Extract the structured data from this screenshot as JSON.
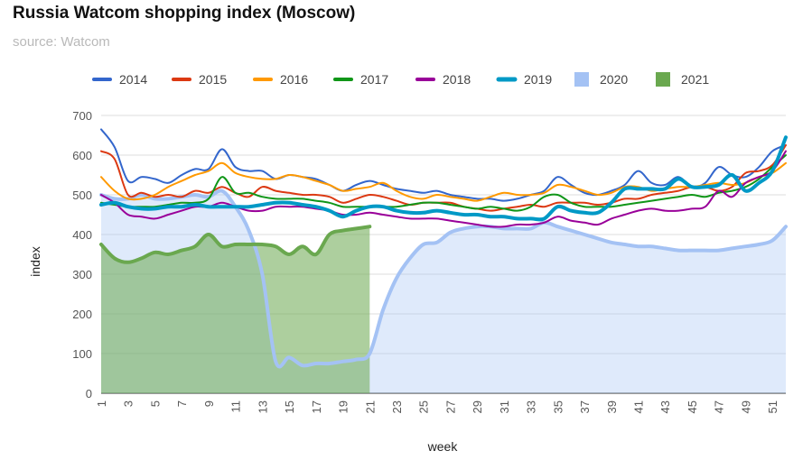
{
  "title": "Russia Watcom shopping index (Moscow)",
  "subtitle": "source: Watcom",
  "chart_data": {
    "type": "line",
    "title": "Russia Watcom shopping index (Moscow)",
    "subtitle": "source: Watcom",
    "xlabel": "week",
    "ylabel": "index",
    "xlim": [
      1,
      52
    ],
    "ylim": [
      0,
      700
    ],
    "yticks": [
      0,
      100,
      200,
      300,
      400,
      500,
      600,
      700
    ],
    "xticks": [
      1,
      3,
      5,
      7,
      9,
      11,
      13,
      15,
      17,
      19,
      21,
      23,
      25,
      27,
      29,
      31,
      33,
      35,
      37,
      39,
      41,
      43,
      45,
      47,
      49,
      51
    ],
    "grid": true,
    "legend_position": "top",
    "series": [
      {
        "name": "2014",
        "style": "line",
        "color": "#3366cc",
        "values": [
          665,
          620,
          535,
          545,
          540,
          530,
          550,
          565,
          565,
          615,
          570,
          560,
          560,
          540,
          550,
          545,
          540,
          525,
          510,
          525,
          535,
          525,
          515,
          510,
          505,
          510,
          500,
          495,
          490,
          490,
          485,
          490,
          500,
          510,
          545,
          525,
          505,
          500,
          510,
          525,
          560,
          530,
          525,
          545,
          520,
          530,
          570,
          550,
          545,
          570,
          610,
          625
        ]
      },
      {
        "name": "2015",
        "style": "line",
        "color": "#dc3912",
        "values": [
          610,
          590,
          500,
          505,
          495,
          500,
          495,
          510,
          505,
          520,
          505,
          495,
          520,
          510,
          505,
          500,
          500,
          495,
          480,
          490,
          500,
          495,
          485,
          475,
          480,
          480,
          480,
          470,
          465,
          460,
          465,
          470,
          475,
          470,
          480,
          480,
          480,
          475,
          480,
          490,
          490,
          500,
          505,
          510,
          520,
          520,
          510,
          520,
          555,
          560,
          575,
          625
        ]
      },
      {
        "name": "2016",
        "style": "line",
        "color": "#ff9900",
        "values": [
          545,
          510,
          490,
          490,
          500,
          520,
          535,
          550,
          560,
          580,
          555,
          545,
          540,
          540,
          550,
          545,
          535,
          525,
          510,
          515,
          520,
          530,
          510,
          495,
          490,
          500,
          495,
          490,
          485,
          495,
          505,
          500,
          500,
          505,
          525,
          520,
          510,
          500,
          505,
          520,
          520,
          510,
          515,
          520,
          520,
          525,
          530,
          525,
          530,
          545,
          555,
          580
        ]
      },
      {
        "name": "2017",
        "style": "line",
        "color": "#109618",
        "values": [
          480,
          475,
          470,
          470,
          470,
          475,
          480,
          480,
          490,
          545,
          505,
          505,
          495,
          490,
          490,
          490,
          485,
          480,
          470,
          470,
          470,
          470,
          470,
          475,
          480,
          480,
          475,
          470,
          465,
          470,
          465,
          460,
          470,
          495,
          500,
          480,
          470,
          470,
          470,
          475,
          480,
          485,
          490,
          495,
          500,
          495,
          505,
          510,
          520,
          540,
          570,
          600
        ]
      },
      {
        "name": "2018",
        "style": "line",
        "color": "#990099",
        "values": [
          500,
          480,
          450,
          445,
          440,
          450,
          460,
          470,
          470,
          480,
          470,
          460,
          460,
          470,
          470,
          470,
          465,
          460,
          450,
          450,
          455,
          450,
          445,
          440,
          440,
          440,
          435,
          430,
          425,
          420,
          420,
          425,
          425,
          430,
          445,
          435,
          430,
          425,
          440,
          450,
          460,
          465,
          460,
          460,
          465,
          470,
          510,
          495,
          530,
          545,
          560,
          610
        ]
      },
      {
        "name": "2019",
        "style": "thick",
        "color": "#0099c6",
        "values": [
          475,
          480,
          470,
          465,
          465,
          470,
          470,
          475,
          470,
          470,
          470,
          470,
          475,
          480,
          480,
          475,
          470,
          460,
          445,
          460,
          470,
          470,
          460,
          455,
          455,
          460,
          455,
          450,
          450,
          445,
          445,
          440,
          440,
          440,
          470,
          460,
          455,
          455,
          480,
          515,
          515,
          515,
          515,
          540,
          520,
          520,
          525,
          550,
          510,
          530,
          560,
          645
        ]
      },
      {
        "name": "2020",
        "style": "area",
        "color": "#a4c2f4",
        "values": [
          500,
          490,
          490,
          500,
          490,
          490,
          495,
          500,
          495,
          510,
          470,
          410,
          300,
          80,
          90,
          70,
          75,
          75,
          80,
          85,
          100,
          210,
          290,
          340,
          375,
          380,
          405,
          415,
          420,
          420,
          415,
          415,
          415,
          430,
          420,
          410,
          400,
          390,
          380,
          375,
          370,
          370,
          365,
          360,
          360,
          360,
          360,
          365,
          370,
          375,
          385,
          420
        ]
      },
      {
        "name": "2021",
        "style": "area",
        "color": "#6aa84f",
        "values": [
          375,
          340,
          330,
          340,
          355,
          350,
          360,
          370,
          400,
          370,
          375,
          375,
          375,
          370,
          350,
          370,
          350,
          400,
          410,
          415,
          420
        ]
      }
    ]
  }
}
